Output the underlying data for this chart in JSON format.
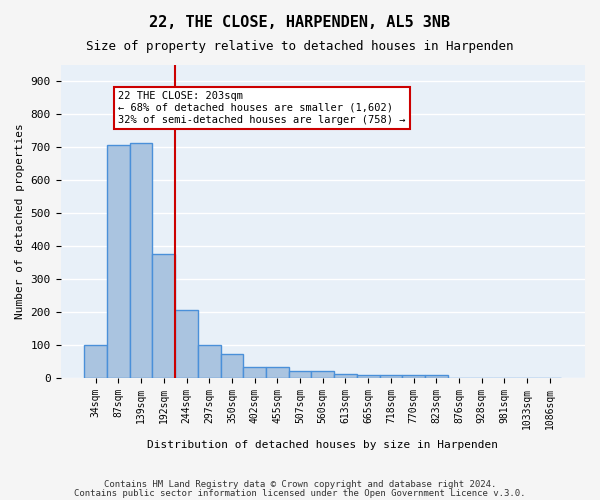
{
  "title": "22, THE CLOSE, HARPENDEN, AL5 3NB",
  "subtitle": "Size of property relative to detached houses in Harpenden",
  "xlabel": "Distribution of detached houses by size in Harpenden",
  "ylabel": "Number of detached properties",
  "categories": [
    "34sqm",
    "87sqm",
    "139sqm",
    "192sqm",
    "244sqm",
    "297sqm",
    "350sqm",
    "402sqm",
    "455sqm",
    "507sqm",
    "560sqm",
    "613sqm",
    "665sqm",
    "718sqm",
    "770sqm",
    "823sqm",
    "876sqm",
    "928sqm",
    "981sqm",
    "1033sqm",
    "1086sqm"
  ],
  "values": [
    100,
    707,
    714,
    375,
    207,
    100,
    73,
    35,
    35,
    22,
    22,
    13,
    10,
    10,
    10,
    8,
    0,
    0,
    0,
    0,
    0
  ],
  "bar_color": "#aac4e0",
  "bar_edge_color": "#4a90d9",
  "bar_linewidth": 1.0,
  "grid_color": "#ffffff",
  "bg_color": "#e8f0f8",
  "red_line_x": 3.5,
  "red_line_color": "#cc0000",
  "annotation_text": "22 THE CLOSE: 203sqm\n← 68% of detached houses are smaller (1,602)\n32% of semi-detached houses are larger (758) →",
  "annotation_box_color": "#ffffff",
  "annotation_edge_color": "#cc0000",
  "footer_line1": "Contains HM Land Registry data © Crown copyright and database right 2024.",
  "footer_line2": "Contains public sector information licensed under the Open Government Licence v.3.0.",
  "ylim": [
    0,
    950
  ],
  "yticks": [
    0,
    100,
    200,
    300,
    400,
    500,
    600,
    700,
    800,
    900
  ],
  "fig_facecolor": "#f5f5f5"
}
